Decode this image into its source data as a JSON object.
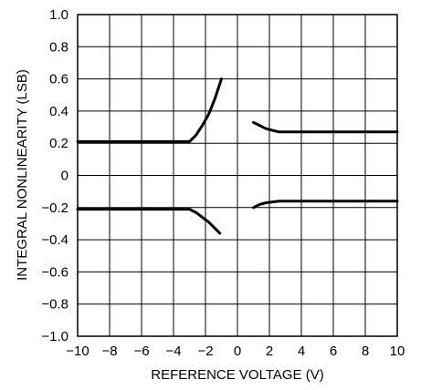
{
  "chart_data": {
    "type": "line",
    "xlabel": "REFERENCE VOLTAGE (V)",
    "ylabel": "INTEGRAL NONLINEARITY (LSB)",
    "xlim": [
      -10,
      10
    ],
    "ylim": [
      -1.0,
      1.0
    ],
    "x_ticks": [
      -10,
      -8,
      -6,
      -4,
      -2,
      0,
      2,
      4,
      6,
      8,
      10
    ],
    "x_tick_labels": [
      "−10",
      "−8",
      "−6",
      "−4",
      "−2",
      "0",
      "2",
      "4",
      "6",
      "8",
      "10"
    ],
    "y_ticks": [
      1.0,
      0.8,
      0.6,
      0.4,
      0.2,
      0,
      -0.2,
      -0.4,
      -0.6,
      -0.8,
      -1.0
    ],
    "y_tick_labels": [
      "1.0",
      "0.8",
      "0.6",
      "0.4",
      "0.2",
      "0",
      "−0.2",
      "−0.4",
      "−0.6",
      "−0.8",
      "−1.0"
    ],
    "grid": true,
    "series": [
      {
        "x": [
          -10,
          -3.0,
          -2.6,
          -2.2,
          -1.8,
          -1.4,
          -1.0
        ],
        "y": [
          0.21,
          0.21,
          0.25,
          0.31,
          0.38,
          0.48,
          0.6
        ]
      },
      {
        "x": [
          -10,
          -3.0,
          -2.6,
          -2.2,
          -1.8,
          -1.4,
          -1.1
        ],
        "y": [
          -0.21,
          -0.21,
          -0.23,
          -0.26,
          -0.29,
          -0.33,
          -0.36
        ]
      },
      {
        "x": [
          1.0,
          1.4,
          1.8,
          2.2,
          2.6,
          3.0,
          10
        ],
        "y": [
          0.33,
          0.31,
          0.29,
          0.28,
          0.27,
          0.27,
          0.27
        ]
      },
      {
        "x": [
          1.0,
          1.4,
          1.8,
          2.2,
          2.6,
          3.0,
          10
        ],
        "y": [
          -0.2,
          -0.18,
          -0.17,
          -0.165,
          -0.16,
          -0.16,
          -0.16
        ]
      }
    ]
  }
}
